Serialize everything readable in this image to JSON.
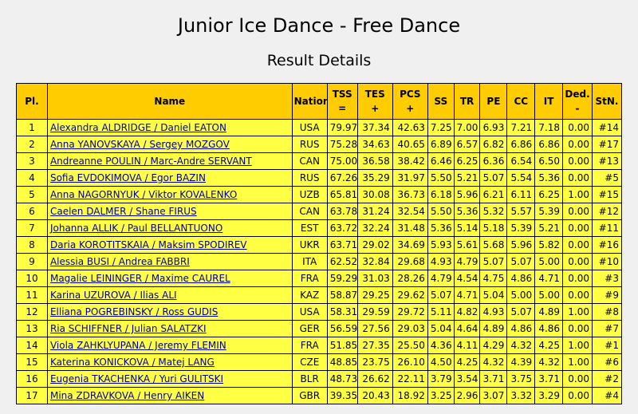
{
  "page": {
    "title": "Junior Ice Dance - Free Dance",
    "subtitle": "Result Details"
  },
  "table": {
    "headers": {
      "pl": "Pl.",
      "name": "Name",
      "nation": "Nation",
      "tss": "TSS",
      "tss_sub": "=",
      "tes": "TES",
      "tes_sub": "+",
      "pcs": "PCS",
      "pcs_sub": "+",
      "ss": "SS",
      "tr": "TR",
      "pe": "PE",
      "cc": "CC",
      "it": "IT",
      "ded": "Ded.",
      "ded_sub": "-",
      "stn": "StN."
    },
    "rows": [
      {
        "pl": "1",
        "name": "Alexandra ALDRIDGE / Daniel EATON",
        "nation": "USA",
        "tss": "79.97",
        "tes": "37.34",
        "pcs": "42.63",
        "ss": "7.25",
        "tr": "7.00",
        "pe": "6.93",
        "cc": "7.21",
        "it": "7.18",
        "ded": "0.00",
        "stn": "#14"
      },
      {
        "pl": "2",
        "name": "Anna YANOVSKAYA / Sergey MOZGOV",
        "nation": "RUS",
        "tss": "75.28",
        "tes": "34.63",
        "pcs": "40.65",
        "ss": "6.89",
        "tr": "6.57",
        "pe": "6.82",
        "cc": "6.86",
        "it": "6.86",
        "ded": "0.00",
        "stn": "#17"
      },
      {
        "pl": "3",
        "name": "Andreanne POULIN / Marc-Andre SERVANT",
        "nation": "CAN",
        "tss": "75.00",
        "tes": "36.58",
        "pcs": "38.42",
        "ss": "6.46",
        "tr": "6.25",
        "pe": "6.36",
        "cc": "6.54",
        "it": "6.50",
        "ded": "0.00",
        "stn": "#13"
      },
      {
        "pl": "4",
        "name": "Sofia EVDOKIMOVA / Egor BAZIN",
        "nation": "RUS",
        "tss": "67.26",
        "tes": "35.29",
        "pcs": "31.97",
        "ss": "5.50",
        "tr": "5.21",
        "pe": "5.07",
        "cc": "5.54",
        "it": "5.36",
        "ded": "0.00",
        "stn": "#5"
      },
      {
        "pl": "5",
        "name": "Anna NAGORNYUK / Viktor KOVALENKO",
        "nation": "UZB",
        "tss": "65.81",
        "tes": "30.08",
        "pcs": "36.73",
        "ss": "6.18",
        "tr": "5.96",
        "pe": "6.21",
        "cc": "6.11",
        "it": "6.25",
        "ded": "1.00",
        "stn": "#15"
      },
      {
        "pl": "6",
        "name": "Caelen DALMER / Shane FIRUS",
        "nation": "CAN",
        "tss": "63.78",
        "tes": "31.24",
        "pcs": "32.54",
        "ss": "5.50",
        "tr": "5.36",
        "pe": "5.32",
        "cc": "5.57",
        "it": "5.39",
        "ded": "0.00",
        "stn": "#12"
      },
      {
        "pl": "7",
        "name": "Johanna ALLIK / Paul BELLANTUONO",
        "nation": "EST",
        "tss": "63.72",
        "tes": "32.24",
        "pcs": "31.48",
        "ss": "5.36",
        "tr": "5.14",
        "pe": "5.18",
        "cc": "5.39",
        "it": "5.21",
        "ded": "0.00",
        "stn": "#11"
      },
      {
        "pl": "8",
        "name": "Daria KOROTITSKAIA / Maksim SPODIREV",
        "nation": "UKR",
        "tss": "63.71",
        "tes": "29.02",
        "pcs": "34.69",
        "ss": "5.93",
        "tr": "5.61",
        "pe": "5.68",
        "cc": "5.96",
        "it": "5.82",
        "ded": "0.00",
        "stn": "#16"
      },
      {
        "pl": "9",
        "name": "Alessia BUSI / Andrea FABBRI",
        "nation": "ITA",
        "tss": "62.52",
        "tes": "32.84",
        "pcs": "29.68",
        "ss": "4.93",
        "tr": "4.79",
        "pe": "5.07",
        "cc": "5.07",
        "it": "5.00",
        "ded": "0.00",
        "stn": "#10"
      },
      {
        "pl": "10",
        "name": "Magalie LEININGER / Maxime CAUREL",
        "nation": "FRA",
        "tss": "59.29",
        "tes": "31.03",
        "pcs": "28.26",
        "ss": "4.79",
        "tr": "4.54",
        "pe": "4.75",
        "cc": "4.86",
        "it": "4.71",
        "ded": "0.00",
        "stn": "#3"
      },
      {
        "pl": "11",
        "name": "Karina UZUROVA / Ilias ALI",
        "nation": "KAZ",
        "tss": "58.87",
        "tes": "29.25",
        "pcs": "29.62",
        "ss": "5.07",
        "tr": "4.71",
        "pe": "5.04",
        "cc": "5.00",
        "it": "5.00",
        "ded": "0.00",
        "stn": "#9"
      },
      {
        "pl": "12",
        "name": "Elliana POGREBINSKY / Ross GUDIS",
        "nation": "USA",
        "tss": "58.31",
        "tes": "29.59",
        "pcs": "29.72",
        "ss": "5.11",
        "tr": "4.82",
        "pe": "4.93",
        "cc": "5.07",
        "it": "4.89",
        "ded": "1.00",
        "stn": "#8"
      },
      {
        "pl": "13",
        "name": "Ria SCHIFFNER / Julian SALATZKI",
        "nation": "GER",
        "tss": "56.59",
        "tes": "27.56",
        "pcs": "29.03",
        "ss": "5.04",
        "tr": "4.64",
        "pe": "4.89",
        "cc": "4.86",
        "it": "4.86",
        "ded": "0.00",
        "stn": "#7"
      },
      {
        "pl": "14",
        "name": "Viola ZAHKLYUPANA / Jeremy FLEMIN",
        "nation": "FRA",
        "tss": "51.85",
        "tes": "27.35",
        "pcs": "25.50",
        "ss": "4.36",
        "tr": "4.11",
        "pe": "4.29",
        "cc": "4.32",
        "it": "4.25",
        "ded": "1.00",
        "stn": "#1"
      },
      {
        "pl": "15",
        "name": "Katerina KONICKOVA / Matej LANG",
        "nation": "CZE",
        "tss": "48.85",
        "tes": "23.75",
        "pcs": "26.10",
        "ss": "4.50",
        "tr": "4.25",
        "pe": "4.32",
        "cc": "4.39",
        "it": "4.32",
        "ded": "1.00",
        "stn": "#6"
      },
      {
        "pl": "16",
        "name": "Eugenia TKACHENKA / Yuri GULITSKI",
        "nation": "BLR",
        "tss": "48.73",
        "tes": "26.62",
        "pcs": "22.11",
        "ss": "3.79",
        "tr": "3.54",
        "pe": "3.71",
        "cc": "3.75",
        "it": "3.71",
        "ded": "0.00",
        "stn": "#2"
      },
      {
        "pl": "17",
        "name": "Mina ZDRAVKOVA / Henry AIKEN",
        "nation": "GBR",
        "tss": "39.35",
        "tes": "20.43",
        "pcs": "18.92",
        "ss": "3.25",
        "tr": "2.96",
        "pe": "3.07",
        "cc": "3.32",
        "it": "3.29",
        "ded": "0.00",
        "stn": "#4"
      }
    ]
  },
  "colors": {
    "header_bg": "#ffcc00",
    "row_bg": "#ffff44",
    "link": "#000099",
    "page_bg": "#f0f0f0"
  }
}
